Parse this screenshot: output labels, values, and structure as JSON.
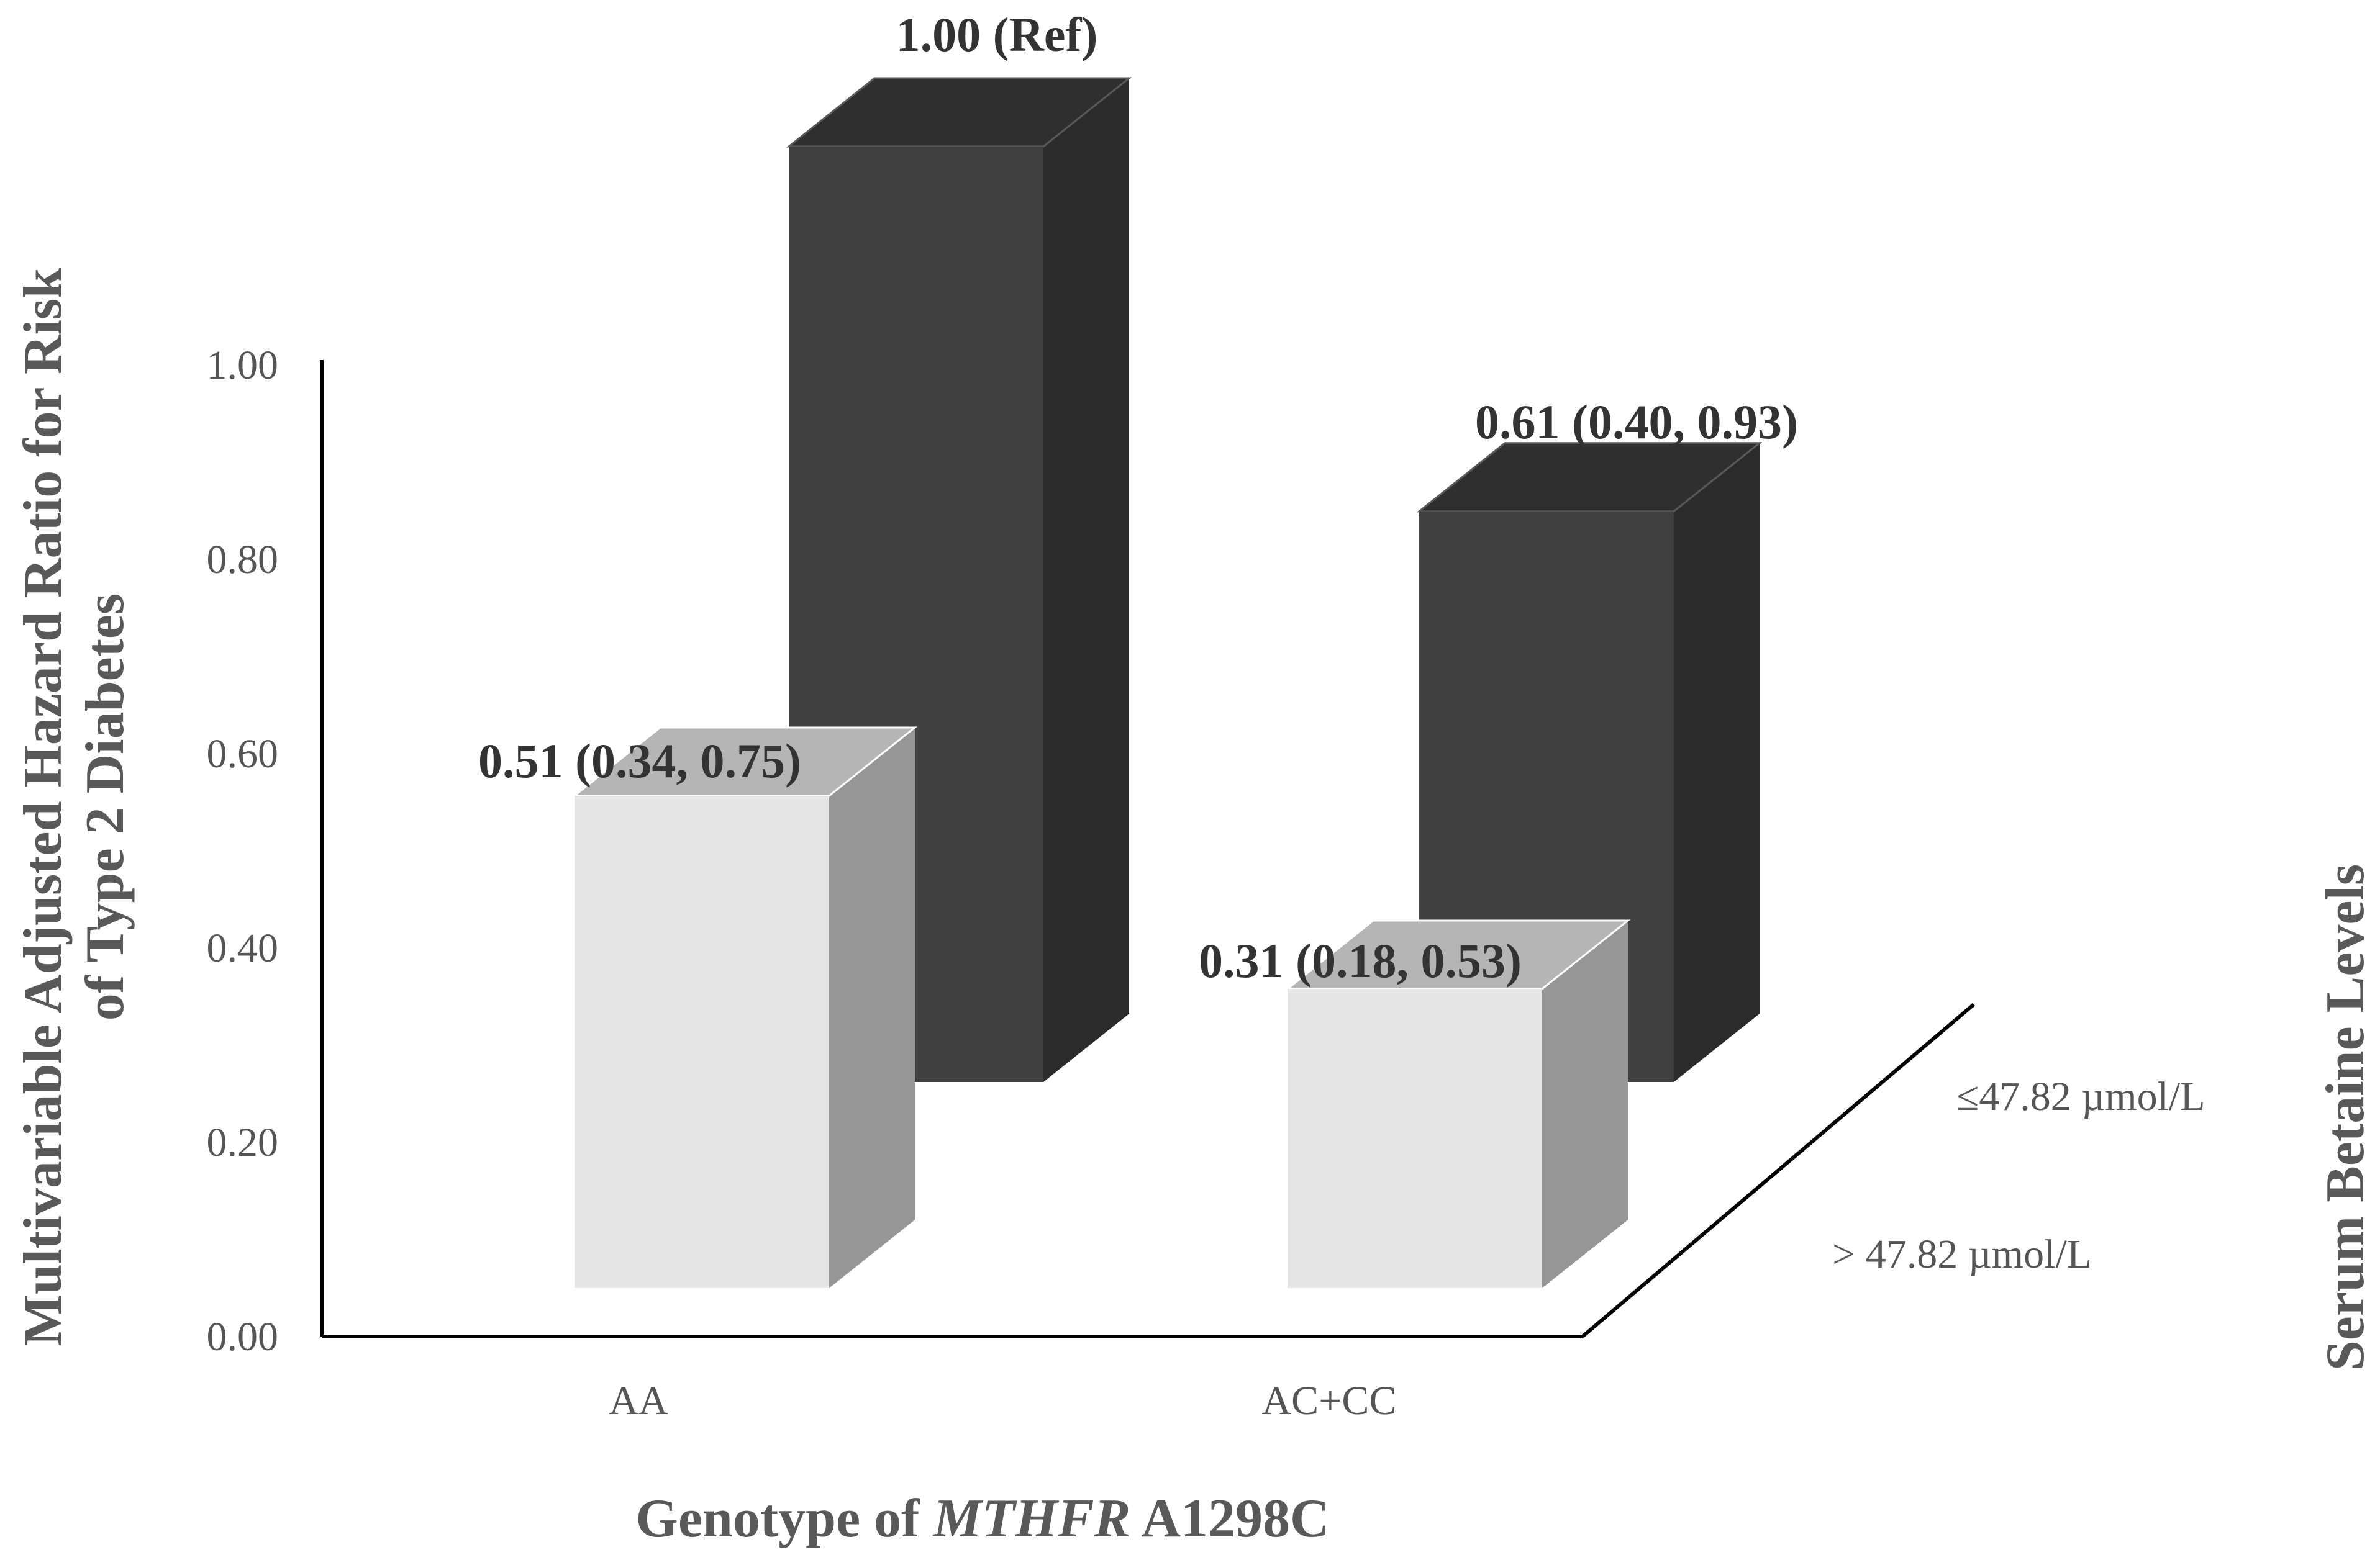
{
  "chart_data": {
    "type": "bar",
    "title": "",
    "xlabel_prefix": "Genotype of ",
    "xlabel_italic": "MTHFR",
    "xlabel_suffix": " A1298C",
    "ylabel_line1": "Multivariable Adjusted Hazard Ratio for Risk",
    "ylabel_line2": "of Type 2 Diabetes",
    "zlabel": "Serum Betaine Levels",
    "ylim": [
      0,
      1.0
    ],
    "y_ticks": [
      "0.00",
      "0.20",
      "0.40",
      "0.60",
      "0.80",
      "1.00"
    ],
    "categories": [
      "AA",
      "AC+CC"
    ],
    "series": [
      {
        "name": "> 47.82 µmol/L",
        "values": [
          0.51,
          0.31
        ],
        "labels": [
          "0.51 (0.34, 0.75)",
          "0.31 (0.18, 0.53)"
        ],
        "color": "#e6e6e6"
      },
      {
        "name": "≤47.82 µmol/L",
        "values": [
          1.0,
          0.61
        ],
        "labels": [
          "1.00 (Ref)",
          "0.61 (0.40, 0.93)"
        ],
        "color": "#404040"
      }
    ],
    "grid": false,
    "legend": "none"
  }
}
